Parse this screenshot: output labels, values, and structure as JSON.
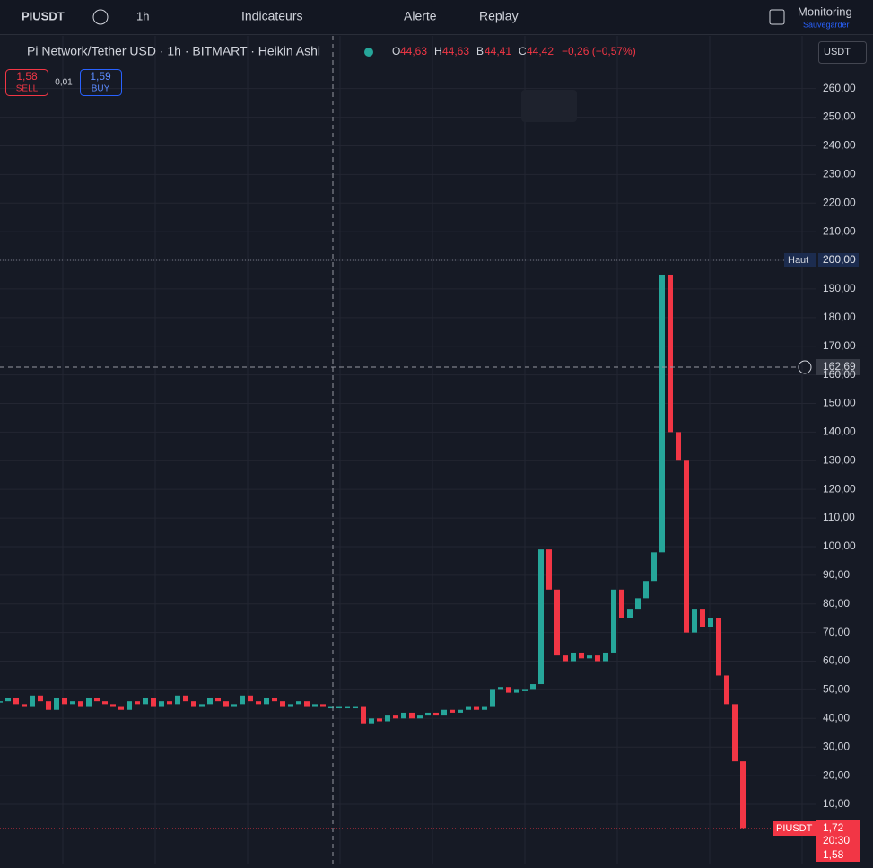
{
  "toolbar": {
    "symbol": "PIUSDT",
    "interval": "1h",
    "indicators": "Indicateurs",
    "alert": "Alerte",
    "replay": "Replay",
    "layout": "Monitoring",
    "save": "Sauvegarder"
  },
  "legend": {
    "title": "Pi Network/Tether USD · 1h · BITMART · Heikin Ashi",
    "o": "O",
    "o_value": "44,63",
    "h": "H",
    "h_value": "44,63",
    "l": "B",
    "l_value": "44,41",
    "c": "C",
    "c_value": "44,42",
    "change": "−0,26 (−0,57%)"
  },
  "trade": {
    "sell_price": "1,58",
    "sell": "SELL",
    "spread": "0,01",
    "buy_price": "1,59",
    "buy": "BUY"
  },
  "currency": "USDT",
  "axis_labels": {
    "high_name": "Haut",
    "high_value": "200,00",
    "crosshair": "162,69",
    "symbol": "PIUSDT",
    "last": "1,72",
    "countdown": "20:30",
    "bid": "1,58"
  },
  "chart_data": {
    "type": "candlestick-line",
    "values": [
      46,
      47,
      45,
      44,
      48,
      46,
      43,
      47,
      45,
      46,
      44,
      47,
      46,
      45,
      44,
      43,
      46,
      45,
      47,
      44,
      46,
      45,
      48,
      46,
      44,
      45,
      47,
      46,
      44,
      45,
      48,
      46,
      45,
      47,
      46,
      44,
      45,
      46,
      44,
      45,
      44,
      44,
      44,
      44,
      44,
      38,
      40,
      39,
      41,
      40,
      42,
      40,
      41,
      42,
      41,
      43,
      42,
      43,
      44,
      43,
      44,
      50,
      51,
      49,
      50,
      50,
      52,
      99,
      85,
      62,
      60,
      63,
      61,
      62,
      60,
      63,
      85,
      75,
      78,
      82,
      88,
      98,
      195,
      140,
      130,
      70,
      78,
      72,
      75,
      55,
      45,
      25,
      1.72
    ],
    "up_color": "#26a69a",
    "down_color": "#f23645",
    "ylim": [
      -10.7,
      278.4
    ],
    "yticks": [
      {
        "value": 10,
        "label": "10,00"
      },
      {
        "value": 20,
        "label": "20,00"
      },
      {
        "value": 30,
        "label": "30,00"
      },
      {
        "value": 40,
        "label": "40,00"
      },
      {
        "value": 50,
        "label": "50,00"
      },
      {
        "value": 60,
        "label": "60,00"
      },
      {
        "value": 70,
        "label": "70,00"
      },
      {
        "value": 80,
        "label": "80,00"
      },
      {
        "value": 90,
        "label": "90,00"
      },
      {
        "value": 100,
        "label": "100,00"
      },
      {
        "value": 110,
        "label": "110,00"
      },
      {
        "value": 120,
        "label": "120,00"
      },
      {
        "value": 130,
        "label": "130,00"
      },
      {
        "value": 140,
        "label": "140,00"
      },
      {
        "value": 150,
        "label": "150,00"
      },
      {
        "value": 160,
        "label": "160,00"
      },
      {
        "value": 170,
        "label": "170,00"
      },
      {
        "value": 180,
        "label": "180,00"
      },
      {
        "value": 190,
        "label": "190,00"
      },
      {
        "value": 200,
        "label": "200,00"
      },
      {
        "value": 210,
        "label": "210,00"
      },
      {
        "value": 220,
        "label": "220,00"
      },
      {
        "value": 230,
        "label": "230,00"
      },
      {
        "value": 240,
        "label": "240,00"
      },
      {
        "value": 250,
        "label": "250,00"
      },
      {
        "value": 260,
        "label": "260,00"
      }
    ],
    "grid": true
  }
}
